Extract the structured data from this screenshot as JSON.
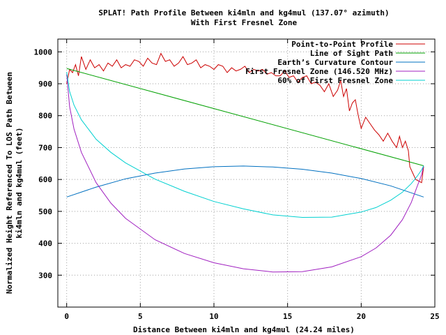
{
  "chart_data": {
    "type": "line",
    "title": "SPLAT! Path Profile Between ki4mln and kg4mul (137.07° azimuth)",
    "subtitle": "With First Fresnel Zone",
    "xlabel": "Distance Between ki4mln and kg4mul (24.24 miles)",
    "ylabel_line1": "Normalized Height Referenced To LOS Path Between",
    "ylabel_line2": "ki4mln and kg4mul (feet)",
    "xlim": [
      -0.6,
      25
    ],
    "ylim": [
      200,
      1040
    ],
    "x_ticks": [
      0,
      5,
      10,
      15,
      20,
      25
    ],
    "x_tick_labels": [
      "0",
      "5",
      "10",
      "15",
      "20",
      "25"
    ],
    "y_ticks": [
      300,
      400,
      500,
      600,
      700,
      800,
      900,
      1000
    ],
    "y_tick_labels": [
      "300",
      "400",
      "500",
      "600",
      "700",
      "800",
      "900",
      "1000"
    ],
    "grid": true,
    "legend_position": "top-right",
    "series": [
      {
        "name": "Point-to-Point Profile",
        "color": "#cc0000",
        "x": [
          0,
          0.2,
          0.4,
          0.6,
          0.8,
          1.0,
          1.3,
          1.6,
          1.9,
          2.2,
          2.5,
          2.8,
          3.1,
          3.4,
          3.7,
          4.0,
          4.3,
          4.6,
          4.9,
          5.2,
          5.5,
          5.8,
          6.1,
          6.4,
          6.7,
          7.0,
          7.3,
          7.6,
          7.9,
          8.2,
          8.5,
          8.8,
          9.1,
          9.4,
          9.7,
          10.0,
          10.3,
          10.6,
          10.9,
          11.2,
          11.5,
          11.8,
          12.1,
          12.4,
          12.7,
          13.0,
          13.3,
          13.6,
          13.9,
          14.2,
          14.5,
          14.8,
          15.1,
          15.4,
          15.7,
          16.0,
          16.3,
          16.6,
          16.9,
          17.2,
          17.5,
          17.8,
          18.1,
          18.4,
          18.6,
          18.8,
          19.0,
          19.2,
          19.4,
          19.6,
          19.8,
          20.0,
          20.3,
          20.6,
          20.9,
          21.2,
          21.5,
          21.8,
          22.1,
          22.4,
          22.6,
          22.8,
          23.0,
          23.2,
          23.3,
          23.5,
          23.7,
          23.9,
          24.1,
          24.24
        ],
        "values": [
          900,
          945,
          935,
          960,
          925,
          985,
          945,
          975,
          950,
          960,
          940,
          965,
          955,
          975,
          950,
          960,
          955,
          975,
          970,
          955,
          980,
          965,
          960,
          995,
          970,
          975,
          955,
          965,
          985,
          960,
          965,
          975,
          950,
          960,
          955,
          945,
          960,
          955,
          935,
          950,
          940,
          945,
          955,
          935,
          945,
          940,
          945,
          930,
          935,
          925,
          925,
          940,
          920,
          925,
          905,
          920,
          925,
          900,
          905,
          895,
          875,
          900,
          860,
          880,
          910,
          860,
          885,
          815,
          840,
          850,
          800,
          760,
          795,
          775,
          755,
          740,
          720,
          745,
          720,
          700,
          735,
          700,
          720,
          690,
          640,
          620,
          600,
          595,
          590,
          640
        ]
      },
      {
        "name": "Line of Sight Path",
        "color": "#00a000",
        "x": [
          0,
          24.24
        ],
        "values": [
          948,
          643
        ]
      },
      {
        "name": "Earth’s Curvature Contour",
        "color": "#0070c0",
        "x": [
          0,
          2,
          4,
          6,
          8,
          10,
          12,
          14,
          16,
          18,
          20,
          22,
          24.24
        ],
        "values": [
          545,
          576,
          602,
          620,
          633,
          640,
          642,
          639,
          632,
          620,
          603,
          580,
          545
        ]
      },
      {
        "name": "First Fresnel Zone (146.520 MHz)",
        "color": "#a020c0",
        "x": [
          0,
          0.2,
          0.5,
          1,
          2,
          3,
          4,
          6,
          8,
          10,
          12,
          14,
          16,
          18,
          20,
          21,
          22,
          22.8,
          23.4,
          23.8,
          24.1,
          24.24
        ],
        "values": [
          930,
          828,
          758,
          685,
          590,
          526,
          478,
          411,
          368,
          339,
          320,
          310,
          311,
          326,
          358,
          385,
          425,
          474,
          528,
          578,
          615,
          643
        ]
      },
      {
        "name": "60% of First Fresnel Zone",
        "color": "#00d0d0",
        "x": [
          0,
          0.2,
          0.5,
          1,
          2,
          3,
          4,
          6,
          8,
          10,
          12,
          14,
          16,
          18,
          20,
          21,
          22,
          22.8,
          23.4,
          23.8,
          24.1,
          24.24
        ],
        "values": [
          937,
          876,
          833,
          787,
          726,
          685,
          652,
          601,
          563,
          531,
          508,
          489,
          481,
          482,
          498,
          512,
          535,
          560,
          587,
          610,
          630,
          643
        ]
      }
    ]
  }
}
